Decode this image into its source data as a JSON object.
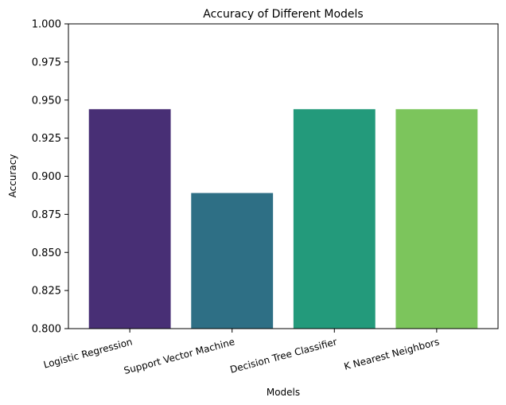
{
  "chart_data": {
    "type": "bar",
    "title": "Accuracy of Different Models",
    "xlabel": "Models",
    "ylabel": "Accuracy",
    "categories": [
      "Logistic Regression",
      "Support Vector Machine",
      "Decision Tree Classifier",
      "K Nearest Neighbors"
    ],
    "values": [
      0.944,
      0.889,
      0.944,
      0.944
    ],
    "colors": [
      "#482f75",
      "#2e6f85",
      "#239a7b",
      "#7cc55c"
    ],
    "ylim": [
      0.8,
      1.0
    ],
    "yticks": [
      "0.800",
      "0.825",
      "0.850",
      "0.875",
      "0.900",
      "0.925",
      "0.950",
      "0.975",
      "1.000"
    ],
    "grid": false
  }
}
